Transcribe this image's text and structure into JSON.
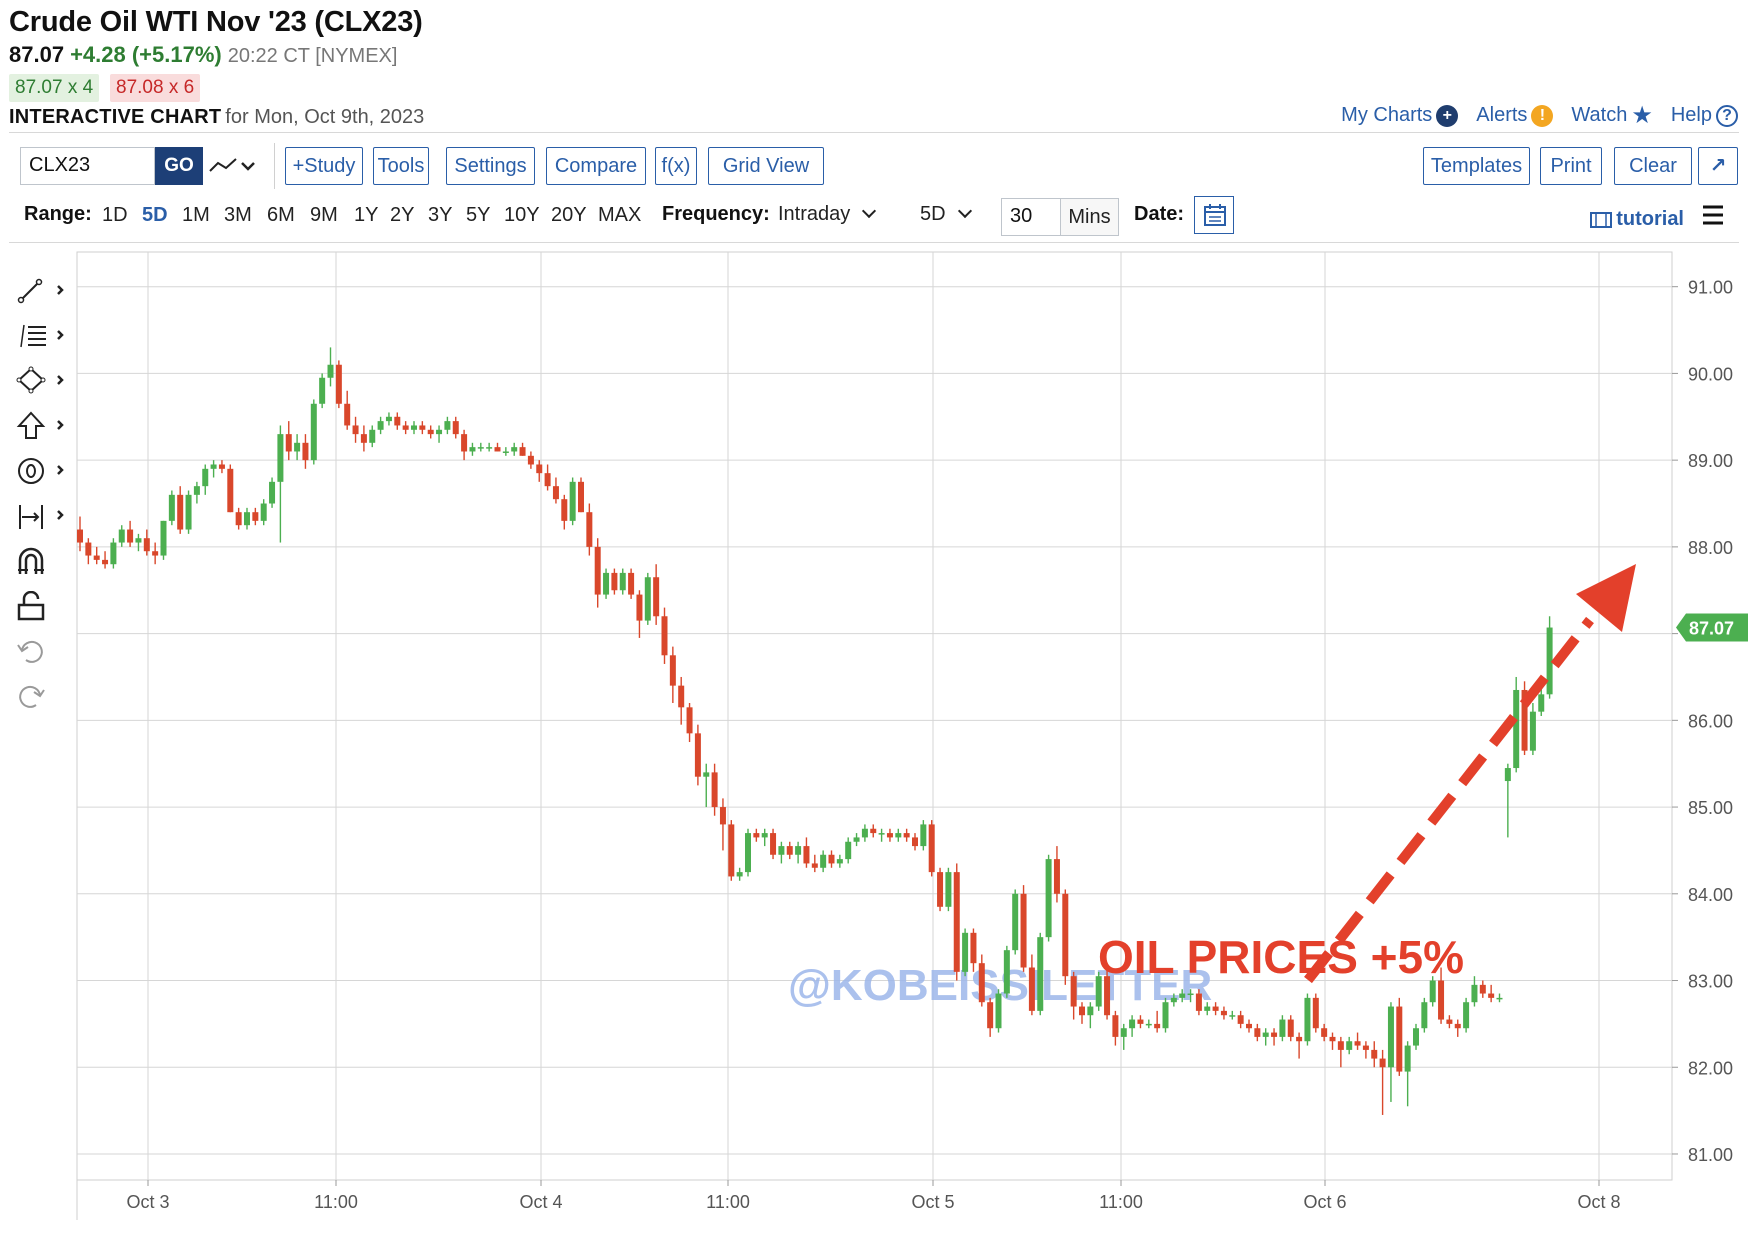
{
  "header": {
    "title": "Crude Oil WTI Nov '23 (CLX23)",
    "last": "87.07",
    "change": "+4.28 (+5.17%)",
    "time": "20:22 CT [NYMEX]",
    "bid": "87.07 x 4",
    "ask": "87.08 x 6",
    "interactive_bold": "INTERACTIVE CHART",
    "interactive_rest": "for Mon, Oct 9th, 2023"
  },
  "toplinks": {
    "my_charts": "My Charts",
    "alerts": "Alerts",
    "watch": "Watch",
    "help": "Help",
    "alerts_glyph": "!",
    "help_glyph": "?",
    "plus_glyph": "+"
  },
  "toolbar": {
    "symbol": "CLX23",
    "go": "GO",
    "study": "+Study",
    "tools": "Tools",
    "settings": "Settings",
    "compare": "Compare",
    "fx": "f(x)",
    "grid_view": "Grid View",
    "templates": "Templates",
    "print": "Print",
    "clear": "Clear",
    "expand": "↗"
  },
  "rangebar": {
    "range_label": "Range:",
    "ranges": [
      "1D",
      "5D",
      "1M",
      "3M",
      "6M",
      "9M",
      "1Y",
      "2Y",
      "3Y",
      "5Y",
      "10Y",
      "20Y",
      "MAX"
    ],
    "active_range": "5D",
    "frequency_label": "Frequency:",
    "frequency": "Intraday",
    "period": "5D",
    "interval": "30",
    "interval_unit": "Mins",
    "date_label": "Date:",
    "tutorial": "tutorial"
  },
  "drawing_tools": [
    "line-tool-icon",
    "fib-tool-icon",
    "shape-tool-icon",
    "arrow-tool-icon",
    "text-tool-icon",
    "measure-tool-icon",
    "magnet-icon",
    "lock-icon",
    "undo-icon",
    "redo-icon"
  ],
  "annotations": {
    "headline": "OIL PRICES +5%",
    "watermark": "@KOBEISSILETTER",
    "headline_color": "#e3402b",
    "watermark_color": "#9db7ea"
  },
  "colors": {
    "up": "#4caf50",
    "down": "#d9472b",
    "link": "#2a5ea8",
    "go": "#1d3f77",
    "price_badge": "#4caf50"
  },
  "chart_data": {
    "type": "candlestick",
    "y_ticks": [
      "91.00",
      "90.00",
      "89.00",
      "88.00",
      "87.00",
      "86.00",
      "85.00",
      "84.00",
      "83.00",
      "82.00",
      "81.00"
    ],
    "ylim": [
      80.7,
      91.4
    ],
    "x_ticks": [
      "Oct 3",
      "11:00",
      "Oct 4",
      "11:00",
      "Oct 5",
      "11:00",
      "Oct 6",
      "Oct 8"
    ],
    "last_price_label": "87.07",
    "candles": [
      [
        88.2,
        88.35,
        87.95,
        88.05
      ],
      [
        88.05,
        88.1,
        87.8,
        87.9
      ],
      [
        87.9,
        88.0,
        87.8,
        87.85
      ],
      [
        87.85,
        87.95,
        87.75,
        87.8
      ],
      [
        87.8,
        88.1,
        87.75,
        88.05
      ],
      [
        88.05,
        88.25,
        88.0,
        88.2
      ],
      [
        88.2,
        88.3,
        88.0,
        88.05
      ],
      [
        88.05,
        88.15,
        87.95,
        88.1
      ],
      [
        88.1,
        88.2,
        87.9,
        87.95
      ],
      [
        87.95,
        88.05,
        87.8,
        87.9
      ],
      [
        87.9,
        88.3,
        87.85,
        88.3
      ],
      [
        88.3,
        88.65,
        88.25,
        88.6
      ],
      [
        88.6,
        88.7,
        88.15,
        88.2
      ],
      [
        88.2,
        88.65,
        88.15,
        88.6
      ],
      [
        88.6,
        88.75,
        88.5,
        88.7
      ],
      [
        88.7,
        88.95,
        88.6,
        88.9
      ],
      [
        88.9,
        89.0,
        88.8,
        88.95
      ],
      [
        88.95,
        89.0,
        88.85,
        88.9
      ],
      [
        88.9,
        88.95,
        88.4,
        88.4
      ],
      [
        88.4,
        88.45,
        88.2,
        88.25
      ],
      [
        88.25,
        88.45,
        88.2,
        88.4
      ],
      [
        88.4,
        88.45,
        88.25,
        88.3
      ],
      [
        88.3,
        88.55,
        88.25,
        88.5
      ],
      [
        88.5,
        88.8,
        88.45,
        88.75
      ],
      [
        88.75,
        89.4,
        88.05,
        89.3
      ],
      [
        89.3,
        89.45,
        89.0,
        89.1
      ],
      [
        89.1,
        89.3,
        89.0,
        89.2
      ],
      [
        89.2,
        89.3,
        88.9,
        89.0
      ],
      [
        89.0,
        89.7,
        88.95,
        89.65
      ],
      [
        89.65,
        90.0,
        89.6,
        89.95
      ],
      [
        89.95,
        90.3,
        89.85,
        90.1
      ],
      [
        90.1,
        90.15,
        89.6,
        89.65
      ],
      [
        89.65,
        89.8,
        89.35,
        89.4
      ],
      [
        89.4,
        89.5,
        89.2,
        89.3
      ],
      [
        89.3,
        89.4,
        89.1,
        89.2
      ],
      [
        89.2,
        89.4,
        89.15,
        89.35
      ],
      [
        89.35,
        89.5,
        89.3,
        89.45
      ],
      [
        89.45,
        89.55,
        89.4,
        89.5
      ],
      [
        89.5,
        89.55,
        89.35,
        89.4
      ],
      [
        89.4,
        89.45,
        89.3,
        89.35
      ],
      [
        89.35,
        89.45,
        89.3,
        89.4
      ],
      [
        89.4,
        89.45,
        89.3,
        89.35
      ],
      [
        89.35,
        89.4,
        89.25,
        89.3
      ],
      [
        89.3,
        89.4,
        89.2,
        89.35
      ],
      [
        89.35,
        89.5,
        89.3,
        89.45
      ],
      [
        89.45,
        89.5,
        89.25,
        89.3
      ],
      [
        89.3,
        89.35,
        89.0,
        89.1
      ],
      [
        89.1,
        89.2,
        89.05,
        89.15
      ],
      [
        89.15,
        89.2,
        89.1,
        89.15
      ],
      [
        89.15,
        89.2,
        89.1,
        89.15
      ],
      [
        89.15,
        89.2,
        89.1,
        89.1
      ],
      [
        89.1,
        89.15,
        89.05,
        89.1
      ],
      [
        89.1,
        89.2,
        89.05,
        89.15
      ],
      [
        89.15,
        89.2,
        89.05,
        89.05
      ],
      [
        89.05,
        89.1,
        88.9,
        88.95
      ],
      [
        88.95,
        89.0,
        88.75,
        88.85
      ],
      [
        88.85,
        88.95,
        88.65,
        88.7
      ],
      [
        88.7,
        88.8,
        88.5,
        88.55
      ],
      [
        88.55,
        88.6,
        88.2,
        88.3
      ],
      [
        88.3,
        88.8,
        88.25,
        88.75
      ],
      [
        88.75,
        88.8,
        88.4,
        88.4
      ],
      [
        88.4,
        88.5,
        87.9,
        88.0
      ],
      [
        88.0,
        88.1,
        87.3,
        87.45
      ],
      [
        87.45,
        87.75,
        87.4,
        87.7
      ],
      [
        87.7,
        87.75,
        87.45,
        87.5
      ],
      [
        87.5,
        87.75,
        87.45,
        87.7
      ],
      [
        87.7,
        87.75,
        87.4,
        87.45
      ],
      [
        87.45,
        87.5,
        86.95,
        87.15
      ],
      [
        87.15,
        87.7,
        87.1,
        87.65
      ],
      [
        87.65,
        87.8,
        87.1,
        87.2
      ],
      [
        87.2,
        87.3,
        86.65,
        86.75
      ],
      [
        86.75,
        86.85,
        86.2,
        86.4
      ],
      [
        86.4,
        86.5,
        85.95,
        86.15
      ],
      [
        86.15,
        86.2,
        85.75,
        85.85
      ],
      [
        85.85,
        85.95,
        85.25,
        85.35
      ],
      [
        85.35,
        85.5,
        85.0,
        85.4
      ],
      [
        85.4,
        85.5,
        84.9,
        85.0
      ],
      [
        85.0,
        85.1,
        84.5,
        84.8
      ],
      [
        84.8,
        84.85,
        84.15,
        84.2
      ],
      [
        84.2,
        84.3,
        84.15,
        84.25
      ],
      [
        84.25,
        84.75,
        84.2,
        84.7
      ],
      [
        84.7,
        84.75,
        84.6,
        84.65
      ],
      [
        84.65,
        84.75,
        84.55,
        84.7
      ],
      [
        84.7,
        84.75,
        84.4,
        84.45
      ],
      [
        84.45,
        84.6,
        84.35,
        84.55
      ],
      [
        84.55,
        84.6,
        84.4,
        84.45
      ],
      [
        84.45,
        84.6,
        84.35,
        84.55
      ],
      [
        84.55,
        84.65,
        84.3,
        84.35
      ],
      [
        84.35,
        84.45,
        84.25,
        84.3
      ],
      [
        84.3,
        84.5,
        84.25,
        84.45
      ],
      [
        84.45,
        84.5,
        84.3,
        84.35
      ],
      [
        84.35,
        84.45,
        84.3,
        84.4
      ],
      [
        84.4,
        84.65,
        84.35,
        84.6
      ],
      [
        84.6,
        84.7,
        84.55,
        84.65
      ],
      [
        84.65,
        84.8,
        84.6,
        84.75
      ],
      [
        84.75,
        84.8,
        84.65,
        84.7
      ],
      [
        84.7,
        84.75,
        84.6,
        84.7
      ],
      [
        84.7,
        84.75,
        84.6,
        84.65
      ],
      [
        84.65,
        84.75,
        84.6,
        84.7
      ],
      [
        84.7,
        84.75,
        84.6,
        84.65
      ],
      [
        84.65,
        84.7,
        84.5,
        84.55
      ],
      [
        84.55,
        84.85,
        84.5,
        84.8
      ],
      [
        84.8,
        84.85,
        84.2,
        84.25
      ],
      [
        84.25,
        84.3,
        83.8,
        83.85
      ],
      [
        83.85,
        84.3,
        83.8,
        84.25
      ],
      [
        84.25,
        84.35,
        83.0,
        83.1
      ],
      [
        83.1,
        83.6,
        83.05,
        83.55
      ],
      [
        83.55,
        83.6,
        83.1,
        83.2
      ],
      [
        83.2,
        83.3,
        82.7,
        82.75
      ],
      [
        82.75,
        82.8,
        82.35,
        82.45
      ],
      [
        82.45,
        82.9,
        82.4,
        82.85
      ],
      [
        82.85,
        83.4,
        82.8,
        83.35
      ],
      [
        83.35,
        84.05,
        83.3,
        84.0
      ],
      [
        84.0,
        84.1,
        83.1,
        83.15
      ],
      [
        83.15,
        83.3,
        82.6,
        82.65
      ],
      [
        82.65,
        83.55,
        82.6,
        83.5
      ],
      [
        83.5,
        84.45,
        83.45,
        84.4
      ],
      [
        84.4,
        84.55,
        83.9,
        84.0
      ],
      [
        84.0,
        84.05,
        82.95,
        83.05
      ],
      [
        83.05,
        83.1,
        82.55,
        82.7
      ],
      [
        82.7,
        82.75,
        82.5,
        82.6
      ],
      [
        82.6,
        82.75,
        82.45,
        82.7
      ],
      [
        82.7,
        83.1,
        82.65,
        83.05
      ],
      [
        83.05,
        83.2,
        82.55,
        82.6
      ],
      [
        82.6,
        82.65,
        82.25,
        82.35
      ],
      [
        82.35,
        82.5,
        82.2,
        82.45
      ],
      [
        82.45,
        82.6,
        82.35,
        82.55
      ],
      [
        82.55,
        82.6,
        82.45,
        82.5
      ],
      [
        82.5,
        82.55,
        82.45,
        82.5
      ],
      [
        82.5,
        82.65,
        82.4,
        82.45
      ],
      [
        82.45,
        82.8,
        82.4,
        82.75
      ],
      [
        82.75,
        82.85,
        82.7,
        82.8
      ],
      [
        82.8,
        82.9,
        82.75,
        82.85
      ],
      [
        82.85,
        82.9,
        82.75,
        82.85
      ],
      [
        82.85,
        82.9,
        82.6,
        82.65
      ],
      [
        82.65,
        82.75,
        82.6,
        82.7
      ],
      [
        82.7,
        82.75,
        82.6,
        82.65
      ],
      [
        82.65,
        82.7,
        82.55,
        82.6
      ],
      [
        82.6,
        82.65,
        82.55,
        82.6
      ],
      [
        82.6,
        82.65,
        82.45,
        82.5
      ],
      [
        82.5,
        82.55,
        82.4,
        82.45
      ],
      [
        82.45,
        82.5,
        82.3,
        82.35
      ],
      [
        82.35,
        82.45,
        82.25,
        82.4
      ],
      [
        82.4,
        82.45,
        82.25,
        82.35
      ],
      [
        82.35,
        82.6,
        82.3,
        82.55
      ],
      [
        82.55,
        82.6,
        82.3,
        82.35
      ],
      [
        82.35,
        82.4,
        82.1,
        82.3
      ],
      [
        82.3,
        82.85,
        82.25,
        82.8
      ],
      [
        82.8,
        82.85,
        82.4,
        82.45
      ],
      [
        82.45,
        82.5,
        82.3,
        82.35
      ],
      [
        82.35,
        82.4,
        82.2,
        82.3
      ],
      [
        82.3,
        82.35,
        82.0,
        82.2
      ],
      [
        82.2,
        82.35,
        82.15,
        82.3
      ],
      [
        82.3,
        82.4,
        82.2,
        82.25
      ],
      [
        82.25,
        82.3,
        82.1,
        82.2
      ],
      [
        82.2,
        82.3,
        82.0,
        82.1
      ],
      [
        82.1,
        82.2,
        81.45,
        82.0
      ],
      [
        82.0,
        82.75,
        81.6,
        82.7
      ],
      [
        82.7,
        82.8,
        81.9,
        81.95
      ],
      [
        81.95,
        82.3,
        81.55,
        82.25
      ],
      [
        82.25,
        82.5,
        82.2,
        82.45
      ],
      [
        82.45,
        82.8,
        82.4,
        82.75
      ],
      [
        82.75,
        83.05,
        82.7,
        83.0
      ],
      [
        83.0,
        83.15,
        82.5,
        82.55
      ],
      [
        82.55,
        82.6,
        82.45,
        82.5
      ],
      [
        82.5,
        82.55,
        82.35,
        82.45
      ],
      [
        82.45,
        82.8,
        82.4,
        82.75
      ],
      [
        82.75,
        83.05,
        82.7,
        82.95
      ],
      [
        82.95,
        83.0,
        82.8,
        82.85
      ],
      [
        82.85,
        82.95,
        82.75,
        82.8
      ],
      [
        82.8,
        82.85,
        82.75,
        82.8
      ],
      [
        85.3,
        85.5,
        84.65,
        85.45
      ],
      [
        85.45,
        86.5,
        85.4,
        86.35
      ],
      [
        86.35,
        86.45,
        85.6,
        85.65
      ],
      [
        85.65,
        86.2,
        85.6,
        86.1
      ],
      [
        86.1,
        86.4,
        86.05,
        86.3
      ],
      [
        86.3,
        87.2,
        86.25,
        87.07
      ]
    ],
    "session_breaks": {
      "before_index": 177
    }
  }
}
